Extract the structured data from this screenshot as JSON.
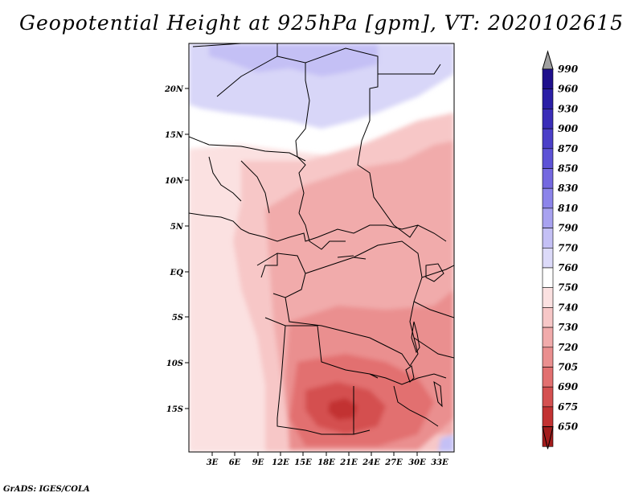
{
  "title": "Geopotential Height at 925hPa [gpm], VT: 2020102615",
  "footer": "GrADS: IGES/COLA",
  "lat_labels": [
    "20N",
    "15N",
    "10N",
    "5N",
    "EQ",
    "5S",
    "10S",
    "15S"
  ],
  "lon_labels": [
    "3E",
    "6E",
    "9E",
    "12E",
    "15E",
    "18E",
    "21E",
    "24E",
    "27E",
    "30E",
    "33E"
  ],
  "colorbar": {
    "levels": [
      "990",
      "960",
      "930",
      "900",
      "870",
      "850",
      "830",
      "810",
      "790",
      "770",
      "760",
      "750",
      "740",
      "730",
      "720",
      "705",
      "690",
      "675",
      "650"
    ],
    "colors": [
      "#1e0f8c",
      "#2a1ea6",
      "#3a2db8",
      "#4b3fc8",
      "#5d52d6",
      "#7468e0",
      "#8c84ea",
      "#a8a2f0",
      "#c4c0f5",
      "#dcdaf9",
      "#ffffff",
      "#fbe1e1",
      "#f7c7c7",
      "#f1abab",
      "#ea8f8f",
      "#e27070",
      "#d45050",
      "#c23232",
      "#a31c1c"
    ],
    "top_arrow_color": "#a0a0a0",
    "bottom_arrow_color": "#a31c1c"
  }
}
